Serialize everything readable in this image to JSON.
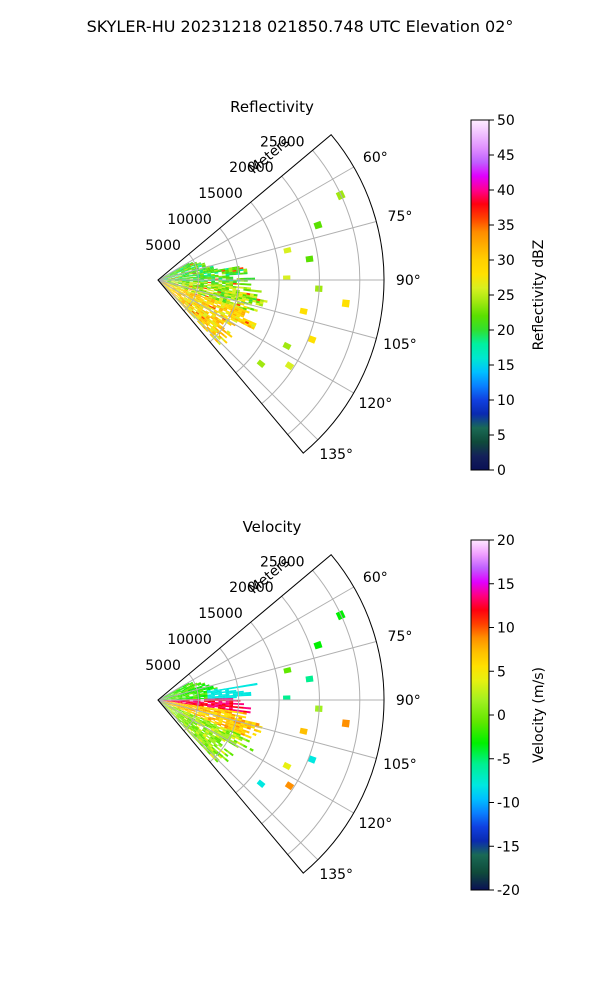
{
  "figure": {
    "title": "SKYLER-HU  20231218  021850.748 UTC Elevation 02°"
  },
  "chart_data": [
    {
      "type": "heatmap",
      "projection": "polar-sector",
      "title": "Reflectivity",
      "range_label": "Meters",
      "range_ticks": [
        5000,
        10000,
        15000,
        20000,
        25000
      ],
      "range_tick_labels": [
        "5000",
        "10000",
        "15000",
        "20000",
        "25000"
      ],
      "range_max": 28000,
      "azimuth_min": 50,
      "azimuth_max": 140,
      "azimuth_ticks": [
        60,
        75,
        90,
        105,
        120,
        135
      ],
      "azimuth_tick_labels": [
        "60°",
        "75°",
        "90°",
        "105°",
        "120°",
        "135°"
      ],
      "grid": true,
      "colorbar": {
        "label": "Reflectivity dBZ",
        "min": 0,
        "max": 50,
        "ticks": [
          0,
          5,
          10,
          15,
          20,
          25,
          30,
          35,
          40,
          45,
          50
        ],
        "tick_labels": [
          "0",
          "5",
          "10",
          "15",
          "20",
          "25",
          "30",
          "35",
          "40",
          "45",
          "50"
        ],
        "stops": [
          [
            0,
            "#0a1055"
          ],
          [
            0.04,
            "#14205a"
          ],
          [
            0.08,
            "#0f4a3a"
          ],
          [
            0.12,
            "#1a6a55"
          ],
          [
            0.16,
            "#0a2ab0"
          ],
          [
            0.2,
            "#1040e0"
          ],
          [
            0.24,
            "#0a80ff"
          ],
          [
            0.28,
            "#00c0ff"
          ],
          [
            0.32,
            "#00e8d0"
          ],
          [
            0.36,
            "#00f0a0"
          ],
          [
            0.4,
            "#30e030"
          ],
          [
            0.44,
            "#5ae000"
          ],
          [
            0.48,
            "#a0e810"
          ],
          [
            0.52,
            "#d8f020"
          ],
          [
            0.56,
            "#ffe000"
          ],
          [
            0.6,
            "#ffd000"
          ],
          [
            0.64,
            "#ffb000"
          ],
          [
            0.68,
            "#ff8c00"
          ],
          [
            0.72,
            "#ff4000"
          ],
          [
            0.76,
            "#ff0010"
          ],
          [
            0.8,
            "#ff0090"
          ],
          [
            0.84,
            "#e000ff"
          ],
          [
            0.88,
            "#c060ff"
          ],
          [
            0.92,
            "#e090ff"
          ],
          [
            0.96,
            "#f0c0ff"
          ],
          [
            1,
            "#ffeeff"
          ]
        ]
      }
    },
    {
      "type": "heatmap",
      "projection": "polar-sector",
      "title": "Velocity",
      "range_label": "Meters",
      "range_ticks": [
        5000,
        10000,
        15000,
        20000,
        25000
      ],
      "range_tick_labels": [
        "5000",
        "10000",
        "15000",
        "20000",
        "25000"
      ],
      "range_max": 28000,
      "azimuth_min": 50,
      "azimuth_max": 140,
      "azimuth_ticks": [
        60,
        75,
        90,
        105,
        120,
        135
      ],
      "azimuth_tick_labels": [
        "60°",
        "75°",
        "90°",
        "105°",
        "120°",
        "135°"
      ],
      "grid": true,
      "colorbar": {
        "label": "Velocity (m/s)",
        "min": -20,
        "max": 20,
        "ticks": [
          -20,
          -15,
          -10,
          -5,
          0,
          5,
          10,
          15,
          20
        ],
        "tick_labels": [
          "-20",
          "-15",
          "-10",
          "-5",
          "0",
          "5",
          "10",
          "15",
          "20"
        ],
        "stops": [
          [
            0,
            "#0a1055"
          ],
          [
            0.05,
            "#0f4a3a"
          ],
          [
            0.1,
            "#1a6a55"
          ],
          [
            0.14,
            "#0a2ab0"
          ],
          [
            0.18,
            "#1040e0"
          ],
          [
            0.22,
            "#0a80ff"
          ],
          [
            0.26,
            "#00c0ff"
          ],
          [
            0.3,
            "#00e8e0"
          ],
          [
            0.36,
            "#00f090"
          ],
          [
            0.42,
            "#00f000"
          ],
          [
            0.48,
            "#60e800"
          ],
          [
            0.54,
            "#a0f020"
          ],
          [
            0.6,
            "#e8f010"
          ],
          [
            0.64,
            "#ffe000"
          ],
          [
            0.68,
            "#ffc000"
          ],
          [
            0.72,
            "#ff9000"
          ],
          [
            0.76,
            "#ff4000"
          ],
          [
            0.8,
            "#ff0010"
          ],
          [
            0.84,
            "#ff0080"
          ],
          [
            0.88,
            "#e000ff"
          ],
          [
            0.92,
            "#c060ff"
          ],
          [
            0.96,
            "#f0a0ff"
          ],
          [
            1,
            "#ffe8ff"
          ]
        ]
      }
    }
  ]
}
